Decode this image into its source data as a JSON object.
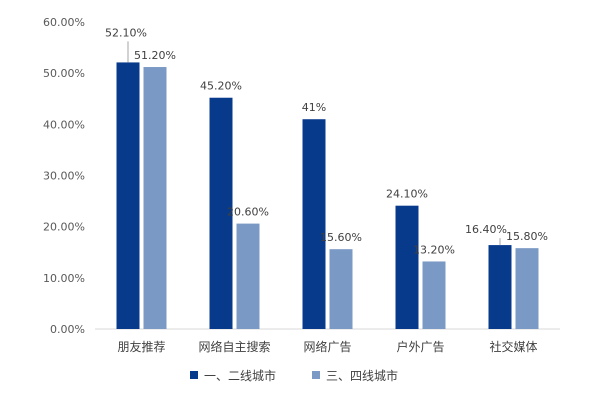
{
  "chart_data": {
    "type": "bar",
    "title": "",
    "xlabel": "",
    "ylabel": "",
    "ylim": [
      0,
      60
    ],
    "ytick_labels": [
      "0.00%",
      "10.00%",
      "20.00%",
      "30.00%",
      "40.00%",
      "50.00%",
      "60.00%"
    ],
    "grid": false,
    "legend_position": "bottom",
    "categories": [
      "朋友推荐",
      "网络自主搜索",
      "网络广告",
      "户外广告",
      "社交媒体"
    ],
    "series": [
      {
        "name": "一、二线城市",
        "color": "#083a8c",
        "values": [
          52.1,
          45.2,
          41,
          24.1,
          16.4
        ],
        "labels": [
          "52.10%",
          "45.20%",
          "41%",
          "24.10%",
          "16.40%"
        ]
      },
      {
        "name": "三、四线城市",
        "color": "#7a99c5",
        "values": [
          51.2,
          20.6,
          15.6,
          13.2,
          15.8
        ],
        "labels": [
          "51.20%",
          "20.60%",
          "15.60%",
          "13.20%",
          "15.80%"
        ]
      }
    ]
  }
}
